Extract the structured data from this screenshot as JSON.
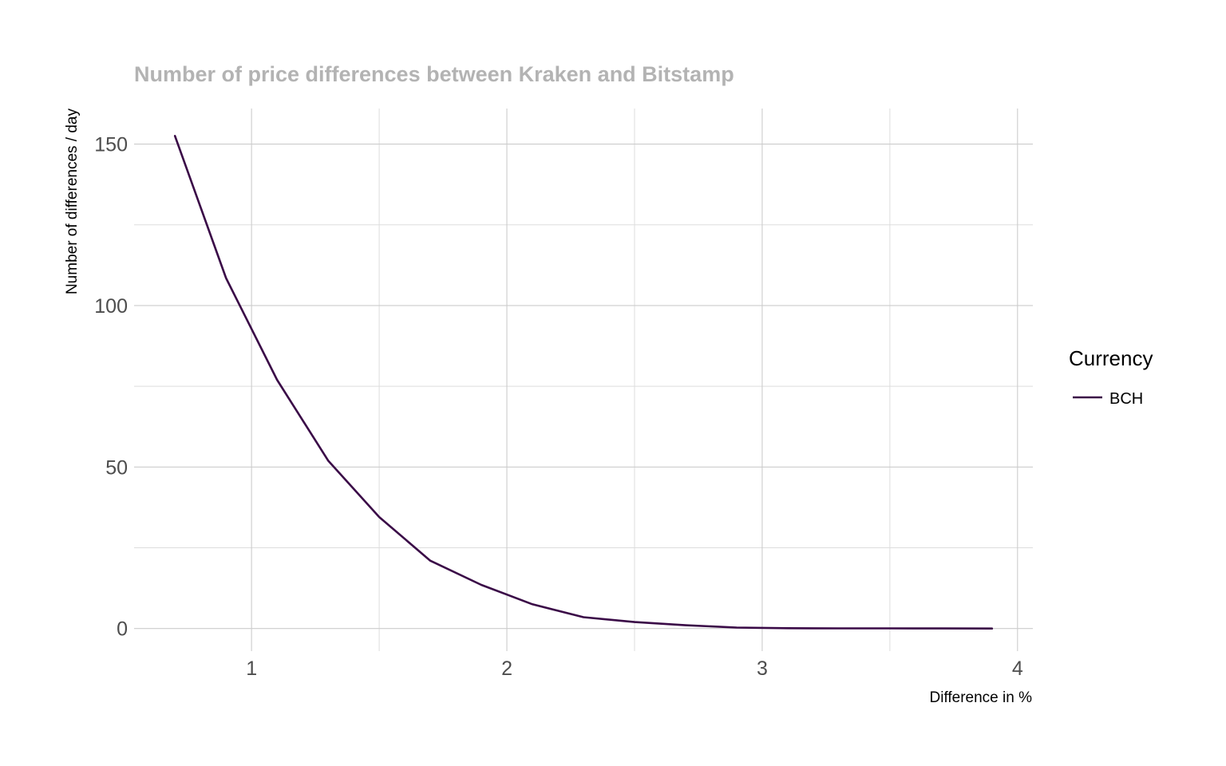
{
  "chart_data": {
    "type": "line",
    "title": "Number of price differences between Kraken and Bitstamp",
    "xlabel": "Difference in %",
    "ylabel": "Number of differences / day",
    "xlim": [
      0.54,
      4.06
    ],
    "ylim": [
      -7,
      161
    ],
    "x_ticks": [
      "1",
      "2",
      "3",
      "4"
    ],
    "x_tick_values": [
      1,
      2,
      3,
      4
    ],
    "y_ticks": [
      "0",
      "50",
      "100",
      "150"
    ],
    "y_tick_values": [
      0,
      50,
      100,
      150
    ],
    "grid": true,
    "legend": {
      "title": "Currency",
      "position": "right"
    },
    "series": [
      {
        "name": "BCH",
        "color": "#3a0a47",
        "x": [
          0.7,
          0.9,
          1.1,
          1.3,
          1.5,
          1.7,
          1.9,
          2.1,
          2.3,
          2.5,
          2.7,
          2.9,
          3.1,
          3.3,
          3.5,
          3.7,
          3.9
        ],
        "y": [
          152.5,
          108.5,
          77,
          52,
          34.5,
          21,
          13.5,
          7.5,
          3.5,
          2,
          1,
          0.3,
          0.1,
          0.05,
          0.03,
          0.01,
          0
        ]
      }
    ]
  }
}
